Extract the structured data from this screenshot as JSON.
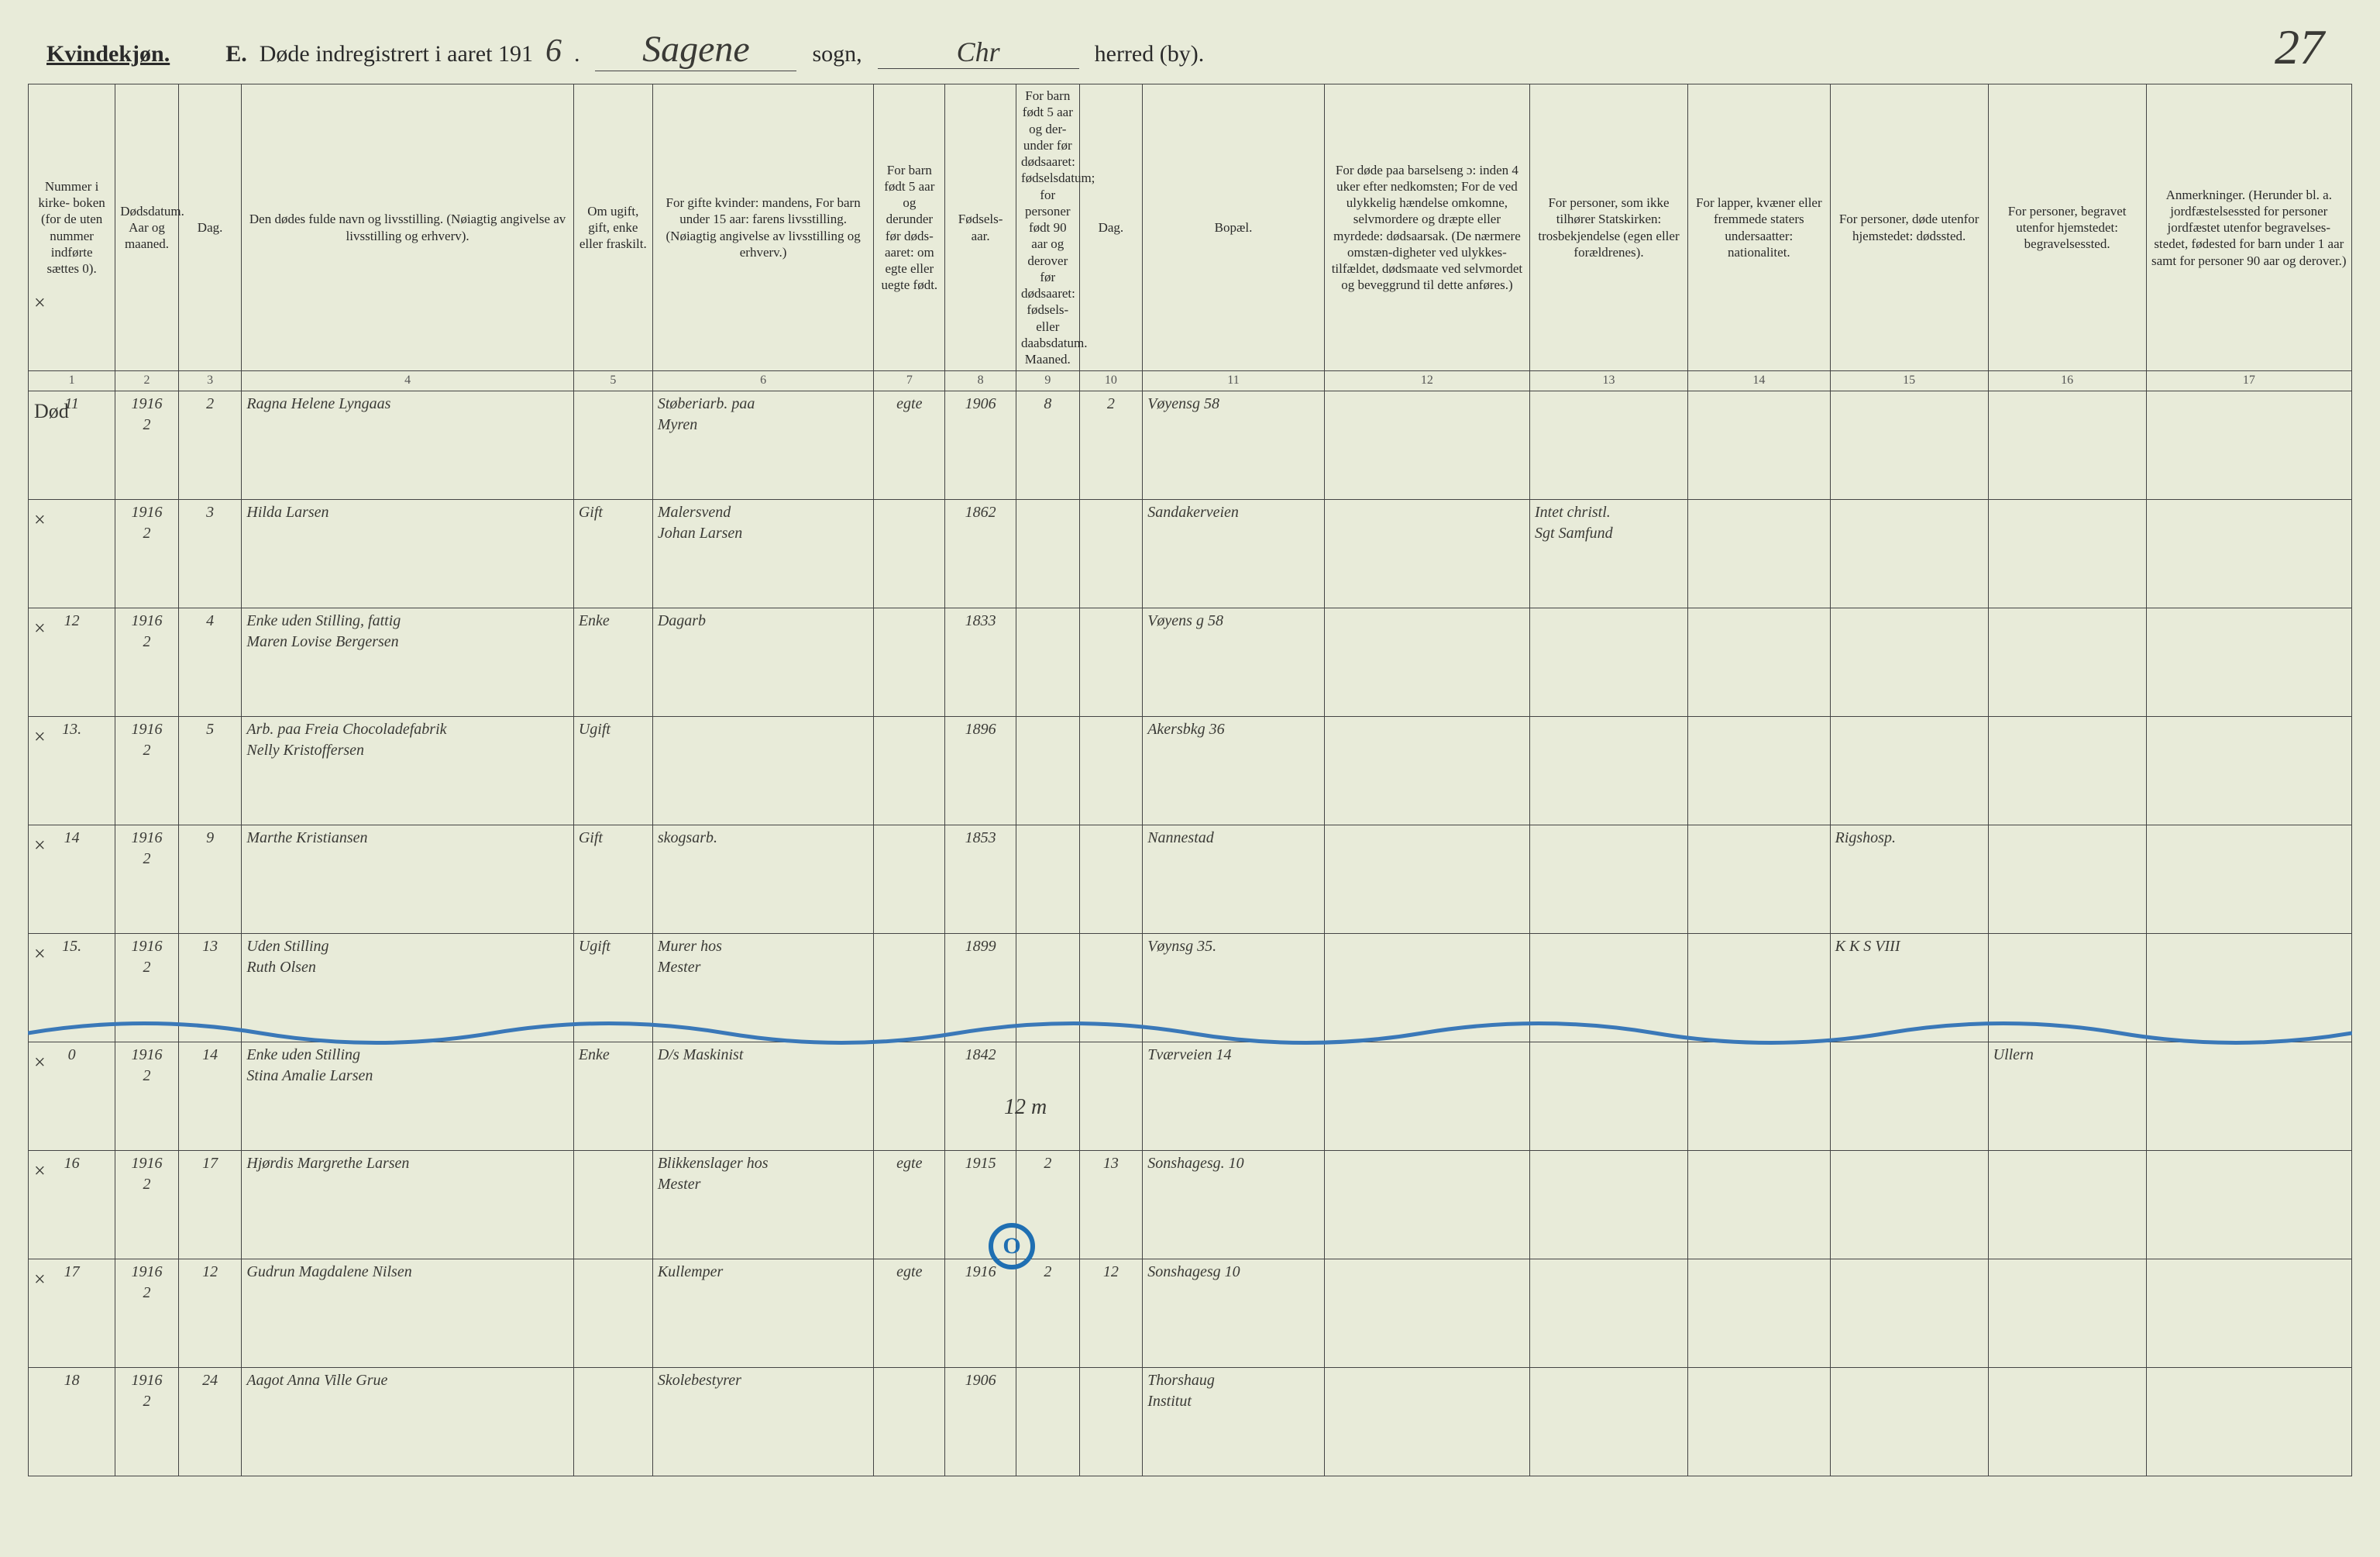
{
  "page_number": "27",
  "header": {
    "sex_label": "Kvindekjøn.",
    "section_letter": "E.",
    "title_prefix": "Døde indregistrert i aaret 191",
    "year_suffix_handwritten": "6",
    "parish_handwritten": "Sagene",
    "parish_label": "sogn,",
    "district_handwritten": "Chr",
    "district_label": "herred (by)."
  },
  "columns": [
    {
      "n": "1",
      "text": "Nummer i kirke-\nboken\n(for de uten nummer indførte sættes 0)."
    },
    {
      "n": "2",
      "text": "Dødsdatum.\nAar og maaned."
    },
    {
      "n": "3",
      "text": "Dag."
    },
    {
      "n": "4",
      "text": "Den dødes fulde navn og livsstilling.\n(Nøiagtig angivelse av livsstilling og erhverv)."
    },
    {
      "n": "5",
      "text": "Om ugift, gift, enke eller fraskilt."
    },
    {
      "n": "6",
      "text": "For gifte kvinder:\nmandens,\nFor barn under 15 aar:\nfarens livsstilling.\n(Nøiagtig angivelse av livsstilling og erhverv.)"
    },
    {
      "n": "7",
      "text": "For barn født 5 aar og derunder før døds-aaret: om egte eller uegte født."
    },
    {
      "n": "8",
      "text": "Fødsels-aar."
    },
    {
      "n": "9",
      "text": "For barn født 5 aar og der-under før dødsaaret: fødselsdatum; for personer født 90 aar og derover før dødsaaret: fødsels- eller daabsdatum.\nMaaned."
    },
    {
      "n": "10",
      "text": "Dag."
    },
    {
      "n": "11",
      "text": "Bopæl."
    },
    {
      "n": "12",
      "text": "For døde paa barselseng ɔ: inden 4 uker efter nedkomsten;\nFor de ved ulykkelig hændelse omkomne, selvmordere og dræpte eller myrdede: dødsaarsak.\n(De nærmere omstæn-digheter ved ulykkes-tilfældet, dødsmaate ved selvmordet og beveggrund til dette anføres.)"
    },
    {
      "n": "13",
      "text": "For personer, som ikke tilhører Statskirken:\ntrosbekjendelse\n(egen eller forældrenes)."
    },
    {
      "n": "14",
      "text": "For lapper, kvæner eller fremmede staters undersaatter:\nnationalitet."
    },
    {
      "n": "15",
      "text": "For personer, døde utenfor hjemstedet:\ndødssted."
    },
    {
      "n": "16",
      "text": "For personer, begravet utenfor hjemstedet:\nbegravelsessted."
    },
    {
      "n": "17",
      "text": "Anmerkninger.\n(Herunder bl. a. jordfæstelsessted for personer jordfæstet utenfor begravelses-stedet, fødested for barn under 1 aar samt for personer 90 aar og derover.)"
    }
  ],
  "rows": [
    {
      "mark": "×",
      "c1": "11",
      "c2": "1916\n2",
      "c3": "2",
      "c4": "Ragna Helene Lyngaas",
      "c5": "",
      "c6": "Støberiarb. paa\nMyren",
      "c7": "egte",
      "c8": "1906",
      "c9": "8",
      "c10": "2",
      "c11": "Vøyensg 58",
      "c12": "",
      "c13": "",
      "c14": "",
      "c15": "",
      "c16": "",
      "c17": ""
    },
    {
      "mark": "Død",
      "c1": "",
      "c2": "1916\n2",
      "c3": "3",
      "c4": "Hilda Larsen",
      "c5": "Gift",
      "c6": "Malersvend\nJohan Larsen",
      "c7": "",
      "c8": "1862",
      "c9": "",
      "c10": "",
      "c11": "Sandakerveien",
      "c12": "",
      "c13": "Intet christl.\nSgt Samfund",
      "c14": "",
      "c15": "",
      "c16": "",
      "c17": ""
    },
    {
      "mark": "×",
      "c1": "12",
      "c2": "1916\n2",
      "c3": "4",
      "c4": "Enke uden Stilling, fattig\nMaren Lovise Bergersen",
      "c5": "Enke",
      "c6": "Dagarb",
      "c7": "",
      "c8": "1833",
      "c9": "",
      "c10": "",
      "c11": "Vøyens g 58",
      "c12": "",
      "c13": "",
      "c14": "",
      "c15": "",
      "c16": "",
      "c17": ""
    },
    {
      "mark": "×",
      "c1": "13.",
      "c2": "1916\n2",
      "c3": "5",
      "c4": "Arb. paa Freia Chocoladefabrik\nNelly Kristoffersen",
      "c5": "Ugift",
      "c6": "",
      "c7": "",
      "c8": "1896",
      "c9": "",
      "c10": "",
      "c11": "Akersbkg 36",
      "c12": "",
      "c13": "",
      "c14": "",
      "c15": "",
      "c16": "",
      "c17": ""
    },
    {
      "mark": "×",
      "c1": "14",
      "c2": "1916\n2",
      "c3": "9",
      "c4": "Marthe Kristiansen",
      "c5": "Gift",
      "c6": "skogsarb.",
      "c7": "",
      "c8": "1853",
      "c9": "",
      "c10": "",
      "c11": "Nannestad",
      "c12": "",
      "c13": "",
      "c14": "",
      "c15": "Rigshosp.",
      "c16": "",
      "c17": ""
    },
    {
      "mark": "×",
      "c1": "15.",
      "c2": "1916\n2",
      "c3": "13",
      "c4": "Uden Stilling\nRuth Olsen",
      "c5": "Ugift",
      "c6": "Murer hos\nMester",
      "c7": "",
      "c8": "1899",
      "c9": "",
      "c10": "",
      "c11": "Vøynsg 35.",
      "c12": "",
      "c13": "",
      "c14": "",
      "c15": "K K S VIII",
      "c16": "",
      "c17": ""
    },
    {
      "mark": "×",
      "c1": "0",
      "c2": "1916\n2",
      "c3": "14",
      "c4": "Enke uden Stilling\nStina Amalie Larsen",
      "c5": "Enke",
      "c6": "D/s Maskinist",
      "c7": "",
      "c8": "1842",
      "c9": "",
      "c10": "",
      "c11": "Tværveien 14",
      "c12": "",
      "c13": "",
      "c14": "",
      "c15": "",
      "c16": "Ullern",
      "c17": ""
    },
    {
      "mark": "×",
      "c1": "16",
      "c2": "1916\n2",
      "c3": "17",
      "c4": "Hjørdis Margrethe Larsen",
      "c5": "",
      "c6": "Blikkenslager hos\nMester",
      "c7": "egte",
      "c8": "1915",
      "c9": "2",
      "c10": "13",
      "c11": "Sonshagesg. 10",
      "c12": "",
      "c13": "",
      "c14": "",
      "c15": "",
      "c16": "",
      "c17": ""
    },
    {
      "mark": "×",
      "c1": "17",
      "c2": "1916\n2",
      "c3": "12",
      "c4": "Gudrun Magdalene Nilsen",
      "c5": "",
      "c6": "Kullemper",
      "c7": "egte",
      "c8": "1916",
      "c9": "2",
      "c10": "12",
      "c11": "Sonshagesg 10",
      "c12": "",
      "c13": "",
      "c14": "",
      "c15": "",
      "c16": "",
      "c17": ""
    },
    {
      "mark": "×",
      "c1": "18",
      "c2": "1916\n2",
      "c3": "24",
      "c4": "Aagot Anna Ville Grue",
      "c5": "",
      "c6": "Skolebestyrer",
      "c7": "",
      "c8": "1906",
      "c9": "",
      "c10": "",
      "c11": "Thorshaug\nInstitut",
      "c12": "",
      "c13": "",
      "c14": "",
      "c15": "",
      "c16": "",
      "c17": ""
    }
  ],
  "overlays": {
    "twelve_m": "12 m",
    "circle_o": "O"
  },
  "style": {
    "paper_bg": "#e8ebd9",
    "ink": "#2a2a2a",
    "rule": "#444",
    "blue": "#3a78b8",
    "header_font_pt": 30,
    "body_font_pt": 20,
    "hw_font_pt": 30
  }
}
